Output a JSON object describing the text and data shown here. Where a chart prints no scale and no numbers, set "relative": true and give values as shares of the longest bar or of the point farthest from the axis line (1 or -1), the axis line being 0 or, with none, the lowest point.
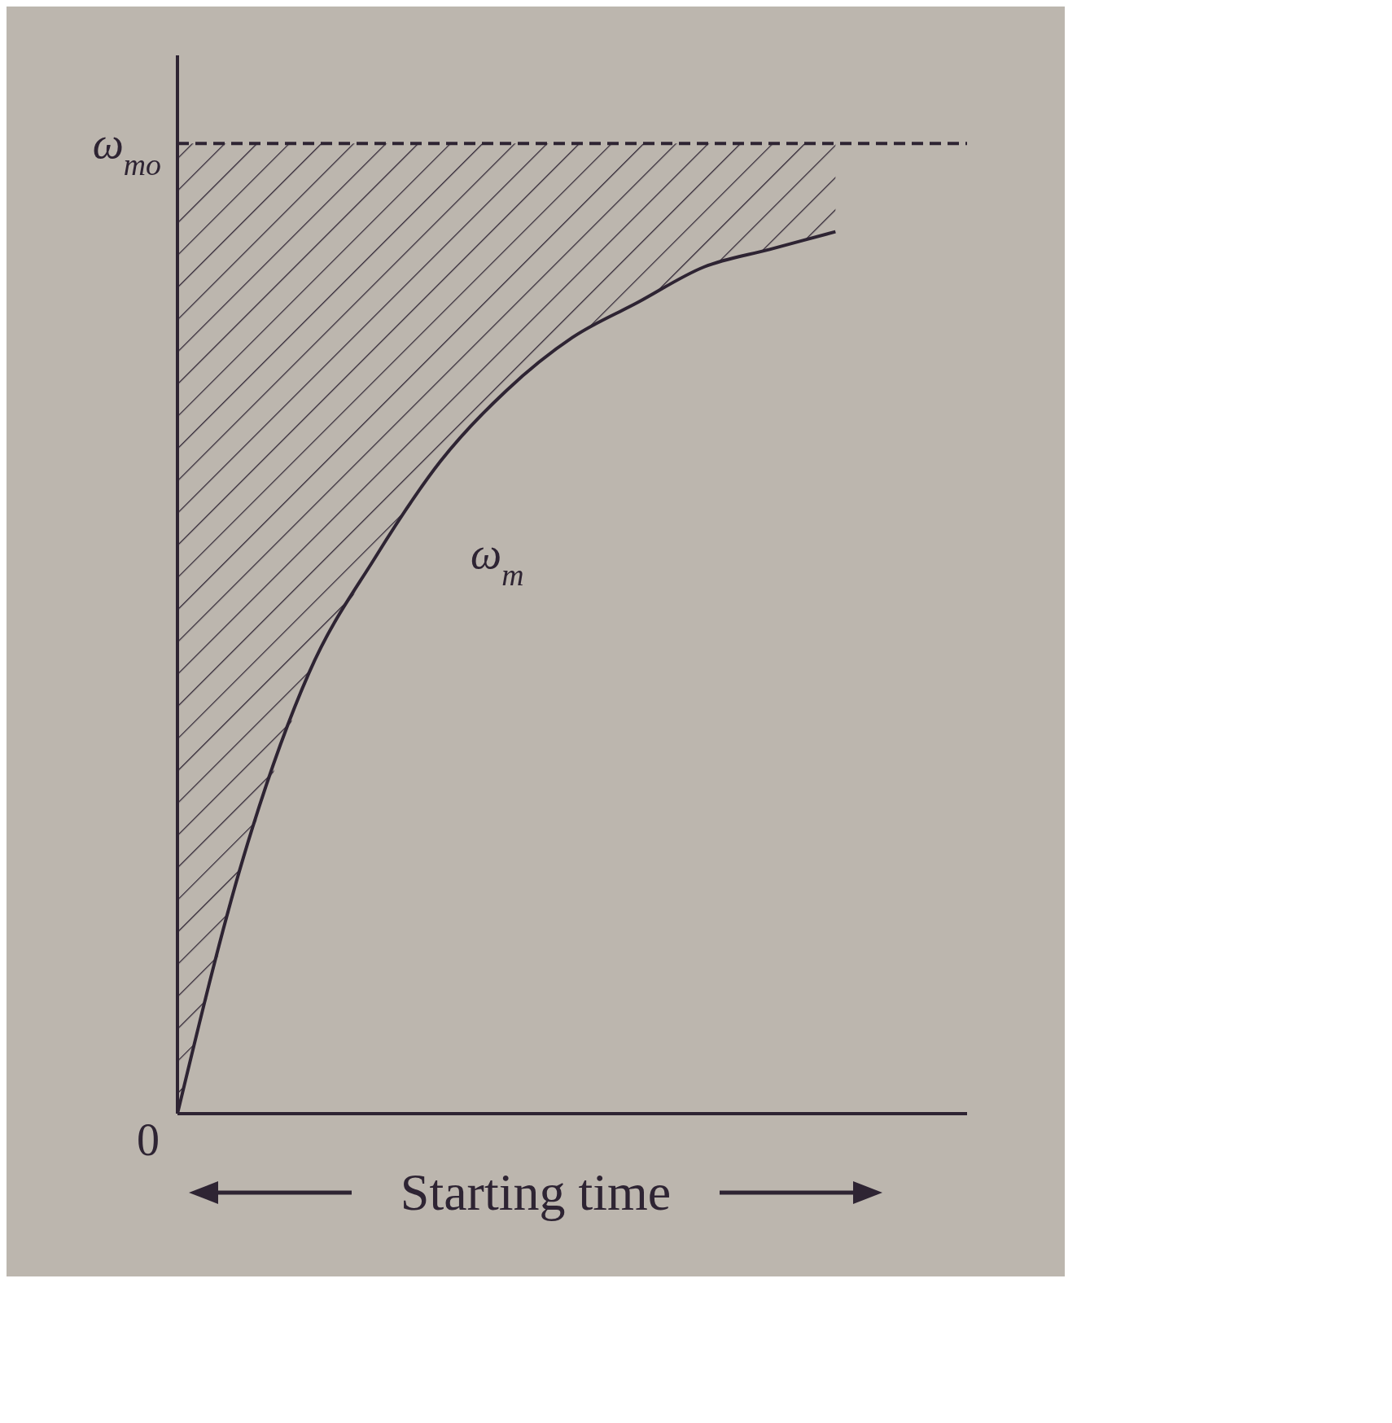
{
  "chart_data": {
    "type": "line",
    "relative": true,
    "xlabel": "Starting time",
    "categories": [
      null,
      null,
      null,
      null,
      null,
      null,
      null,
      null,
      null,
      null,
      null
    ],
    "series": [
      {
        "color": "#2e2433",
        "values": [
          0,
          0.29,
          0.5,
          0.63,
          0.74,
          0.82,
          0.88,
          0.92,
          0.96,
          0.98,
          1.0
        ],
        "lower": [
          0,
          0.29,
          0.5,
          0.63,
          0.74,
          0.82,
          0.88,
          0.92,
          0.96,
          0.98,
          1.0
        ],
        "upper": [
          1.1,
          1.1,
          1.1,
          1.1,
          1.1,
          1.1,
          1.1,
          1.1,
          1.1,
          1.1,
          1.1
        ]
      }
    ],
    "ref_lines": [
      {
        "axis": "y",
        "value": 1.1,
        "label": "ω$_{mo}$",
        "line_style": "dashed",
        "color": "#2e2433"
      }
    ],
    "annotations": [
      "ω$_{m}$",
      "0"
    ],
    "marker": "none",
    "line_style": "solid"
  }
}
